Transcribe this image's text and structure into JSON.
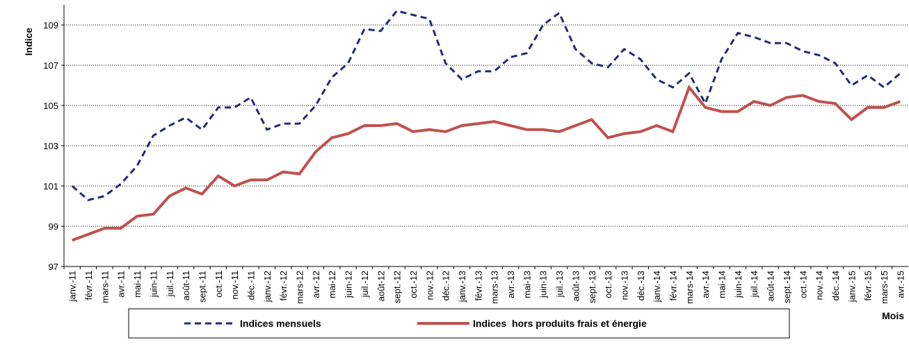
{
  "chart_data": {
    "type": "line",
    "ylabel": "Indice",
    "xlabel": "Mois",
    "categories": [
      "janv.-11",
      "févr.-11",
      "mars-11",
      "avr.-11",
      "mai-11",
      "juin-11",
      "juil.-11",
      "août-11",
      "sept.-11",
      "oct.-11",
      "nov.-11",
      "déc.-11",
      "janv.-12",
      "févr.-12",
      "mars-12",
      "avr.-12",
      "mai-12",
      "juin-12",
      "juil.-12",
      "août-12",
      "sept.-12",
      "oct.-12",
      "nov.-12",
      "déc.-12",
      "janv.-13",
      "févr.-13",
      "mars-13",
      "avr.-13",
      "mai-13",
      "juin-13",
      "juil.-13",
      "août-13",
      "sept.-13",
      "oct.-13",
      "nov.-13",
      "déc.-13",
      "janv.-14",
      "févr.-14",
      "mars-14",
      "avr.-14",
      "mai-14",
      "juin-14",
      "juil.-14",
      "août-14",
      "sept.-14",
      "oct.-14",
      "nov.-14",
      "déc.-14",
      "janv.-15",
      "févr.-15",
      "mars-15",
      "avr.-15"
    ],
    "series": [
      {
        "name": "Indices mensuels",
        "color": "#1f2a7a",
        "dash": true,
        "values": [
          101.0,
          100.3,
          100.5,
          101.1,
          102.0,
          103.5,
          104.0,
          104.4,
          103.8,
          104.9,
          104.9,
          105.4,
          103.8,
          104.1,
          104.1,
          105.0,
          106.4,
          107.1,
          108.8,
          108.7,
          109.7,
          109.5,
          109.3,
          107.1,
          106.3,
          106.7,
          106.7,
          107.4,
          107.6,
          109.0,
          109.6,
          107.8,
          107.1,
          106.9,
          107.8,
          107.3,
          106.3,
          105.9,
          106.6,
          105.1,
          107.3,
          108.6,
          108.4,
          108.1,
          108.1,
          107.7,
          107.5,
          107.1,
          106.0,
          106.5,
          105.9,
          106.6
        ]
      },
      {
        "name": "Indices  hors produits frais et énergie",
        "color": "#c0504d",
        "dash": false,
        "values": [
          98.3,
          98.6,
          98.9,
          98.9,
          99.5,
          99.6,
          100.5,
          100.9,
          100.6,
          101.5,
          101.0,
          101.3,
          101.3,
          101.7,
          101.6,
          102.7,
          103.4,
          103.6,
          104.0,
          104.0,
          104.1,
          103.7,
          103.8,
          103.7,
          104.0,
          104.1,
          104.2,
          104.0,
          103.8,
          103.8,
          103.7,
          104.0,
          104.3,
          103.4,
          103.6,
          103.7,
          104.0,
          103.7,
          105.9,
          104.9,
          104.7,
          104.7,
          105.2,
          105.0,
          105.4,
          105.5,
          105.2,
          105.1,
          104.3,
          104.9,
          104.9,
          105.2
        ]
      }
    ],
    "ylim": [
      97,
      110
    ],
    "yticks": [
      97,
      99,
      101,
      103,
      105,
      107,
      109
    ],
    "grid": true
  }
}
